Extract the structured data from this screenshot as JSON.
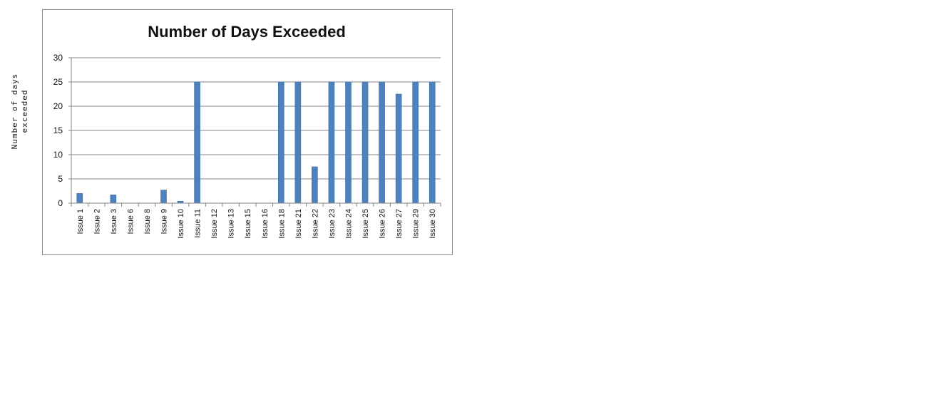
{
  "chart_data": {
    "type": "bar",
    "title": "Number of Days Exceeded",
    "ylabel": "Number of days exceeded",
    "xlabel": "",
    "categories": [
      "Issue 1",
      "Issue 2",
      "Issue 3",
      "Issue 6",
      "Issue 8",
      "Issue 9",
      "Issue 10",
      "Issue 11",
      "Issue 12",
      "Issue 13",
      "Issue 15",
      "Issue 16",
      "Issue 18",
      "Issue 21",
      "Issue 22",
      "Issue 23",
      "Issue 24",
      "Issue 25",
      "Issue 26",
      "Issue 27",
      "Issue 29",
      "Issue 30"
    ],
    "values": [
      2,
      0,
      1.7,
      0,
      0,
      2.7,
      0.4,
      25,
      0,
      0,
      0,
      0,
      25,
      25,
      7.5,
      25,
      25,
      25,
      25,
      22.5,
      25,
      25
    ],
    "ylim": [
      0,
      30
    ],
    "yticks": [
      0,
      5,
      10,
      15,
      20,
      25,
      30
    ],
    "grid": true,
    "legend": "none",
    "bar_color": "#4f81bd"
  }
}
